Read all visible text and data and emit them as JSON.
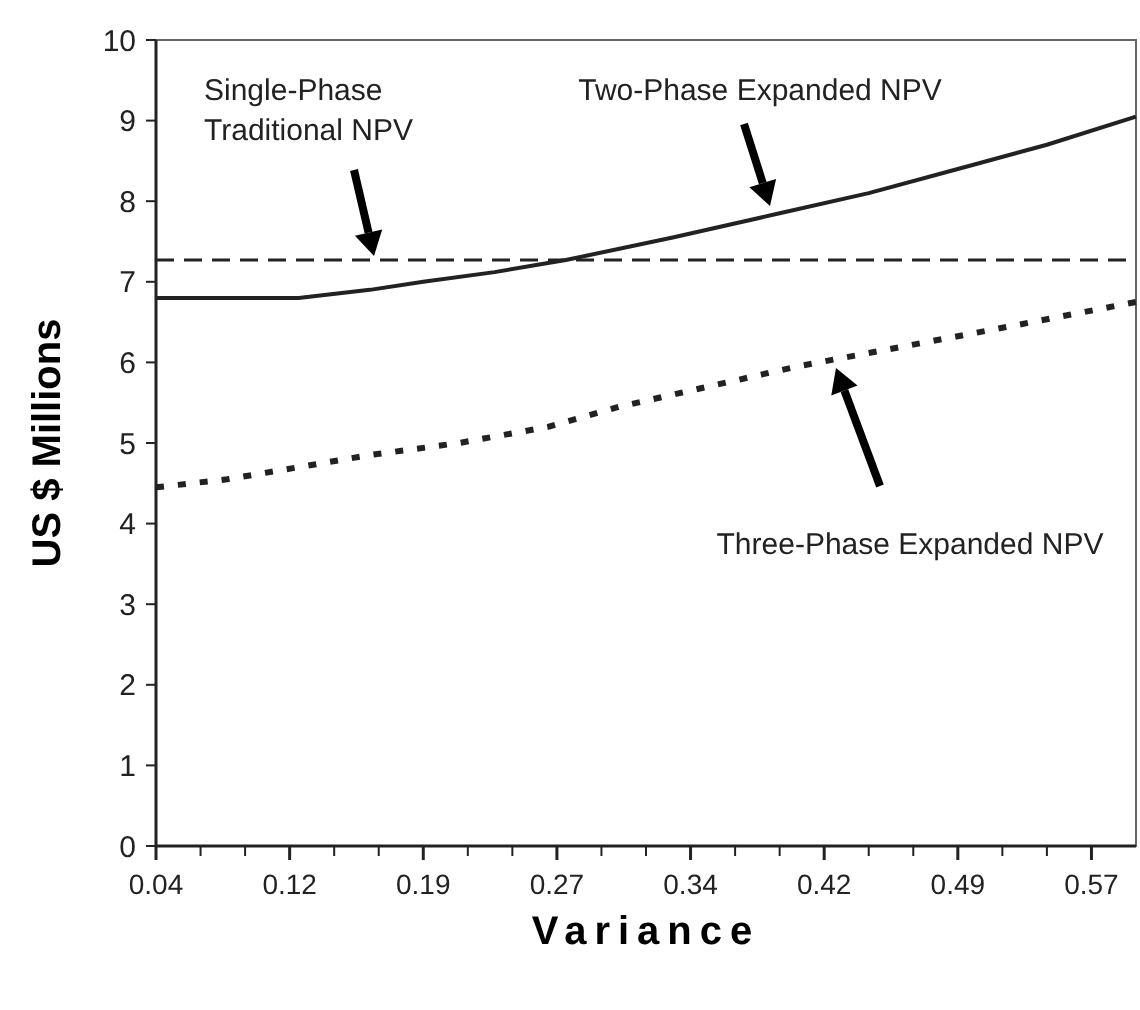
{
  "chart_data": {
    "type": "line",
    "xlabel": "Variance",
    "ylabel": "US $ Millions",
    "xlim": [
      0.04,
      0.59
    ],
    "xticks": [
      {
        "value": 0.04,
        "label": "0.04"
      },
      {
        "value": 0.065,
        "label": null
      },
      {
        "value": 0.09,
        "label": null
      },
      {
        "value": 0.115,
        "label": "0.12"
      },
      {
        "value": 0.14,
        "label": null
      },
      {
        "value": 0.165,
        "label": null
      },
      {
        "value": 0.19,
        "label": "0.19"
      },
      {
        "value": 0.215,
        "label": null
      },
      {
        "value": 0.24,
        "label": null
      },
      {
        "value": 0.265,
        "label": "0.27"
      },
      {
        "value": 0.29,
        "label": null
      },
      {
        "value": 0.315,
        "label": null
      },
      {
        "value": 0.34,
        "label": "0.34"
      },
      {
        "value": 0.365,
        "label": null
      },
      {
        "value": 0.39,
        "label": null
      },
      {
        "value": 0.415,
        "label": "0.42"
      },
      {
        "value": 0.44,
        "label": null
      },
      {
        "value": 0.465,
        "label": null
      },
      {
        "value": 0.49,
        "label": "0.49"
      },
      {
        "value": 0.515,
        "label": null
      },
      {
        "value": 0.54,
        "label": null
      },
      {
        "value": 0.565,
        "label": "0.57"
      }
    ],
    "ylim": [
      0,
      10
    ],
    "yticks": [
      0,
      1,
      2,
      3,
      4,
      5,
      6,
      7,
      8,
      9,
      10
    ],
    "grid": false,
    "series": [
      {
        "color": "#222222",
        "line_style": "solid",
        "x": [
          0.04,
          0.12,
          0.16,
          0.19,
          0.23,
          0.27,
          0.33,
          0.39,
          0.44,
          0.49,
          0.54,
          0.59
        ],
        "values": [
          6.8,
          6.8,
          6.9,
          7.0,
          7.12,
          7.27,
          7.55,
          7.85,
          8.1,
          8.4,
          8.7,
          9.05
        ]
      },
      {
        "color": "#222222",
        "line_style": "dotted",
        "x": [
          0.04,
          0.08,
          0.12,
          0.16,
          0.21,
          0.26,
          0.3,
          0.35,
          0.4,
          0.46,
          0.52,
          0.59
        ],
        "values": [
          4.45,
          4.55,
          4.7,
          4.85,
          5.0,
          5.2,
          5.45,
          5.7,
          5.95,
          6.2,
          6.45,
          6.75
        ]
      }
    ],
    "ref_lines": [
      {
        "axis": "y",
        "value": 7.27,
        "color": "#222222",
        "line_style": "dashed"
      }
    ],
    "annotations": [
      "Single-Phase\nTraditional NPV",
      "Two-Phase Expanded NPV",
      "Three-Phase Expanded NPV"
    ]
  }
}
